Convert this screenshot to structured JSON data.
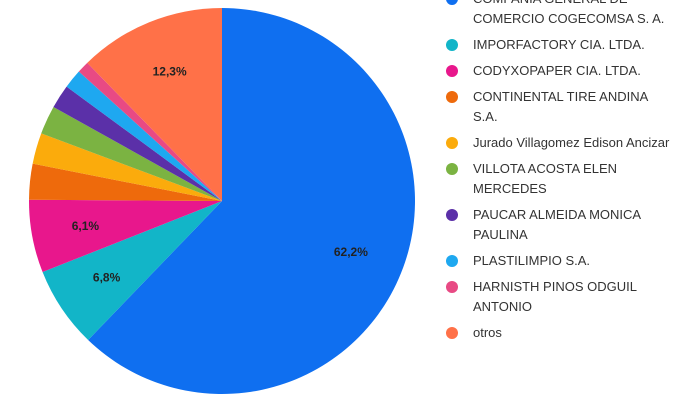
{
  "chart_data": {
    "type": "pie",
    "categories": [
      "COMPAÑIA GENERAL DE COMERCIO COGECOMSA S. A.",
      "IMPORFACTORY CIA. LTDA.",
      "CODYXOPAPER CIA. LTDA.",
      "CONTINENTAL TIRE ANDINA S.A.",
      "Jurado Villagomez Edison Ancizar",
      "VILLOTA ACOSTA ELEN MERCEDES",
      "PAUCAR ALMEIDA MONICA PAULINA",
      "PLASTILIMPIO S.A.",
      "HARNISTH PINOS ODGUIL ANTONIO",
      "otros"
    ],
    "values": [
      62.2,
      6.8,
      6.1,
      3,
      2.6,
      2.4,
      2,
      1.6,
      1,
      12.3
    ],
    "value_labels": [
      "62,2%",
      "6,8%",
      "6,1%",
      null,
      null,
      null,
      null,
      null,
      null,
      "12,3%"
    ],
    "colors": [
      "#0f6ff0",
      "#12b5c8",
      "#e8178c",
      "#ee6a0c",
      "#fbab0c",
      "#7bb342",
      "#5b30a8",
      "#1ea8f0",
      "#e84a84",
      "#ff7148"
    ]
  }
}
